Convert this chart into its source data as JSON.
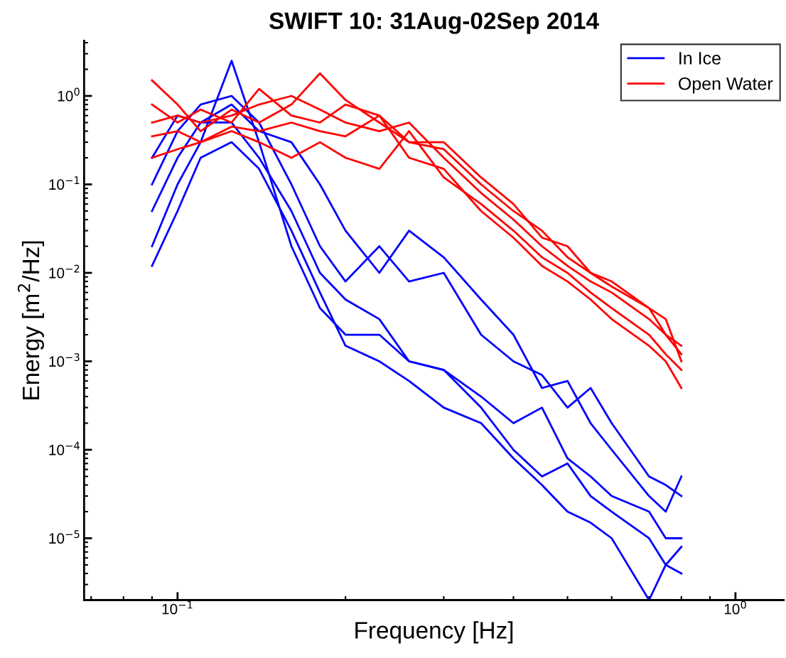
{
  "chart_data": {
    "type": "line",
    "title": "SWIFT 10: 31Aug-02Sep 2014",
    "xlabel": "Frequency [Hz]",
    "ylabel": "Energy [m$^{2}$/Hz]",
    "log": "xy",
    "grid": false,
    "legend": "top right",
    "line_style": "solid",
    "marker": "none",
    "x": [
      0.09,
      0.1,
      0.11,
      0.125,
      0.14,
      0.16,
      0.18,
      0.2,
      0.23,
      0.26,
      0.3,
      0.35,
      0.4,
      0.45,
      0.5,
      0.55,
      0.6,
      0.7,
      0.75,
      0.8
    ],
    "xlim": [
      0.068,
      1.22
    ],
    "ylim": [
      2e-06,
      4.2
    ],
    "xticks": [
      {
        "value": 0.1,
        "label": "10$^{−1}$"
      },
      {
        "value": 1,
        "label": "10$^{0}$"
      }
    ],
    "yticks": [
      {
        "value": 1e-05,
        "label": "10$^{−5}$"
      },
      {
        "value": 0.0001,
        "label": "10$^{−4}$"
      },
      {
        "value": 0.001,
        "label": "10$^{−3}$"
      },
      {
        "value": 0.01,
        "label": "10$^{−2}$"
      },
      {
        "value": 0.1,
        "label": "10$^{−1}$"
      },
      {
        "value": 1,
        "label": "10$^{0}$"
      }
    ],
    "series": [
      {
        "name": "In Ice",
        "color": "#0000ff",
        "values": [
          0.1,
          0.4,
          0.8,
          1.0,
          0.5,
          0.1,
          0.02,
          0.008,
          0.02,
          0.008,
          0.01,
          0.002,
          0.001,
          0.0007,
          0.0003,
          0.0005,
          0.0002,
          5e-05,
          4e-05,
          3e-05
        ]
      },
      {
        "color": "#0000ff",
        "values": [
          0.02,
          0.1,
          0.3,
          2.5,
          0.3,
          0.02,
          0.004,
          0.002,
          0.002,
          0.001,
          0.0008,
          0.0004,
          0.0002,
          0.0003,
          8e-05,
          5e-05,
          3e-05,
          2e-05,
          1e-05,
          1e-05
        ]
      },
      {
        "color": "#0000ff",
        "values": [
          0.05,
          0.2,
          0.5,
          0.5,
          0.2,
          0.05,
          0.01,
          0.005,
          0.003,
          0.001,
          0.0008,
          0.0003,
          0.0001,
          5e-05,
          7e-05,
          3e-05,
          2e-05,
          1e-05,
          5e-06,
          8e-06
        ]
      },
      {
        "color": "#0000ff",
        "values": [
          0.012,
          0.05,
          0.2,
          0.3,
          0.15,
          0.03,
          0.006,
          0.0015,
          0.001,
          0.0006,
          0.0003,
          0.0002,
          8e-05,
          4e-05,
          2e-05,
          1.5e-05,
          1e-05,
          2e-06,
          5e-06,
          4e-06
        ]
      },
      {
        "color": "#0000ff",
        "values": [
          0.2,
          0.6,
          0.5,
          0.8,
          0.4,
          0.3,
          0.1,
          0.03,
          0.01,
          0.03,
          0.015,
          0.005,
          0.002,
          0.0005,
          0.0006,
          0.0002,
          0.0001,
          3e-05,
          2e-05,
          5e-05
        ]
      },
      {
        "name": "Open Water",
        "color": "#ff0000",
        "values": [
          0.5,
          0.6,
          0.5,
          0.6,
          0.8,
          1.0,
          0.7,
          0.5,
          0.4,
          0.5,
          0.2,
          0.08,
          0.04,
          0.02,
          0.012,
          0.008,
          0.006,
          0.003,
          0.002,
          0.0015
        ]
      },
      {
        "color": "#ff0000",
        "values": [
          1.5,
          0.8,
          0.4,
          0.7,
          0.5,
          0.8,
          1.8,
          0.9,
          0.5,
          0.3,
          0.25,
          0.1,
          0.05,
          0.03,
          0.015,
          0.01,
          0.007,
          0.004,
          0.002,
          0.0012
        ]
      },
      {
        "color": "#ff0000",
        "values": [
          0.2,
          0.25,
          0.3,
          0.4,
          0.3,
          0.2,
          0.3,
          0.2,
          0.15,
          0.4,
          0.12,
          0.06,
          0.03,
          0.015,
          0.01,
          0.006,
          0.004,
          0.002,
          0.0012,
          0.0008
        ]
      },
      {
        "color": "#ff0000",
        "values": [
          0.8,
          0.5,
          0.7,
          0.5,
          1.2,
          0.6,
          0.5,
          0.8,
          0.6,
          0.3,
          0.3,
          0.12,
          0.06,
          0.025,
          0.02,
          0.01,
          0.008,
          0.004,
          0.003,
          0.001
        ]
      },
      {
        "color": "#ff0000",
        "values": [
          0.35,
          0.4,
          0.3,
          0.45,
          0.4,
          0.5,
          0.4,
          0.35,
          0.6,
          0.2,
          0.15,
          0.05,
          0.025,
          0.012,
          0.008,
          0.005,
          0.003,
          0.0015,
          0.001,
          0.0005
        ]
      }
    ]
  }
}
